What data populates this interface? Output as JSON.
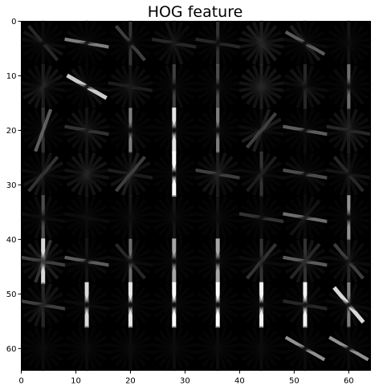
{
  "chart_data": {
    "type": "heatmap",
    "title": "HOG feature",
    "xlabel": "",
    "ylabel": "",
    "xlim": [
      0,
      64
    ],
    "ylim": [
      64,
      0
    ],
    "x_ticks": [
      0,
      10,
      20,
      30,
      40,
      50,
      60
    ],
    "y_ticks": [
      0,
      10,
      20,
      30,
      40,
      50,
      60
    ],
    "colormap": "gray",
    "grid": false,
    "image_size": [
      64,
      64
    ],
    "cell_size": 8,
    "cells_per_side": 8,
    "orientation_bins_deg": [
      0,
      20,
      40,
      60,
      80,
      100,
      120,
      140,
      160
    ],
    "cells": [
      [
        [
          0.1,
          0.05,
          0.25,
          0.15,
          0.1,
          0.05,
          0.05,
          0.05,
          0.05
        ],
        [
          0.05,
          0.05,
          0.05,
          0.1,
          0.55,
          0.05,
          0.05,
          0.05,
          0.05
        ],
        [
          0.3,
          0.05,
          0.35,
          0.05,
          0.05,
          0.05,
          0.05,
          0.05,
          0.05
        ],
        [
          0.1,
          0.15,
          0.05,
          0.1,
          0.25,
          0.05,
          0.05,
          0.1,
          0.1
        ],
        [
          0.3,
          0.05,
          0.05,
          0.05,
          0.25,
          0.05,
          0.05,
          0.05,
          0.05
        ],
        [
          0.2,
          0.15,
          0.2,
          0.15,
          0.15,
          0.15,
          0.1,
          0.15,
          0.15
        ],
        [
          0.05,
          0.1,
          0.2,
          0.45,
          0.1,
          0.05,
          0.05,
          0.05,
          0.05
        ],
        [
          0.15,
          0.05,
          0.05,
          0.05,
          0.05,
          0.05,
          0.05,
          0.05,
          0.05
        ]
      ],
      [
        [
          0.2,
          0.1,
          0.1,
          0.05,
          0.1,
          0.1,
          0.15,
          0.15,
          0.15
        ],
        [
          0.05,
          0.1,
          0.15,
          0.8,
          0.1,
          0.05,
          0.05,
          0.05,
          0.05
        ],
        [
          0.15,
          0.1,
          0.1,
          0.1,
          0.2,
          0.1,
          0.1,
          0.1,
          0.1
        ],
        [
          0.35,
          0.1,
          0.05,
          0.05,
          0.05,
          0.05,
          0.05,
          0.05,
          0.05
        ],
        [
          0.4,
          0.05,
          0.05,
          0.05,
          0.05,
          0.05,
          0.05,
          0.05,
          0.05
        ],
        [
          0.2,
          0.15,
          0.15,
          0.15,
          0.15,
          0.15,
          0.15,
          0.15,
          0.15
        ],
        [
          0.25,
          0.1,
          0.15,
          0.1,
          0.1,
          0.05,
          0.05,
          0.05,
          0.1
        ],
        [
          0.5,
          0.05,
          0.1,
          0.05,
          0.05,
          0.05,
          0.05,
          0.05,
          0.1
        ]
      ],
      [
        [
          0.3,
          0.05,
          0.05,
          0.05,
          0.05,
          0.05,
          0.05,
          0.1,
          0.45
        ],
        [
          0.15,
          0.1,
          0.15,
          0.1,
          0.3,
          0.1,
          0.1,
          0.1,
          0.1
        ],
        [
          0.55,
          0.1,
          0.1,
          0.05,
          0.05,
          0.05,
          0.05,
          0.05,
          0.05
        ],
        [
          0.9,
          0.05,
          0.05,
          0.05,
          0.05,
          0.05,
          0.05,
          0.05,
          0.05
        ],
        [
          0.55,
          0.05,
          0.05,
          0.05,
          0.05,
          0.05,
          0.05,
          0.05,
          0.05
        ],
        [
          0.1,
          0.05,
          0.05,
          0.05,
          0.1,
          0.1,
          0.2,
          0.35,
          0.2
        ],
        [
          0.1,
          0.05,
          0.05,
          0.05,
          0.45,
          0.05,
          0.05,
          0.05,
          0.05
        ],
        [
          0.2,
          0.15,
          0.15,
          0.1,
          0.25,
          0.1,
          0.1,
          0.1,
          0.15
        ]
      ],
      [
        [
          0.15,
          0.05,
          0.05,
          0.05,
          0.1,
          0.05,
          0.15,
          0.3,
          0.15
        ],
        [
          0.15,
          0.15,
          0.15,
          0.1,
          0.15,
          0.1,
          0.15,
          0.15,
          0.15
        ],
        [
          0.15,
          0.1,
          0.1,
          0.05,
          0.2,
          0.05,
          0.15,
          0.35,
          0.2
        ],
        [
          1.0,
          0.05,
          0.05,
          0.05,
          0.05,
          0.05,
          0.05,
          0.05,
          0.05
        ],
        [
          0.2,
          0.1,
          0.1,
          0.1,
          0.35,
          0.1,
          0.1,
          0.15,
          0.15
        ],
        [
          0.3,
          0.05,
          0.05,
          0.05,
          0.1,
          0.05,
          0.1,
          0.2,
          0.1
        ],
        [
          0.05,
          0.05,
          0.1,
          0.1,
          0.4,
          0.1,
          0.05,
          0.05,
          0.05
        ],
        [
          0.15,
          0.1,
          0.25,
          0.1,
          0.15,
          0.05,
          0.05,
          0.05,
          0.1
        ]
      ],
      [
        [
          0.4,
          0.1,
          0.05,
          0.05,
          0.1,
          0.05,
          0.05,
          0.05,
          0.1
        ],
        [
          0.1,
          0.05,
          0.05,
          0.05,
          0.1,
          0.05,
          0.05,
          0.05,
          0.05
        ],
        [
          0.15,
          0.05,
          0.05,
          0.05,
          0.05,
          0.05,
          0.05,
          0.05,
          0.05
        ],
        [
          0.15,
          0.05,
          0.05,
          0.05,
          0.05,
          0.05,
          0.05,
          0.05,
          0.05
        ],
        [
          0.15,
          0.05,
          0.05,
          0.05,
          0.05,
          0.05,
          0.05,
          0.05,
          0.05
        ],
        [
          0.1,
          0.05,
          0.05,
          0.05,
          0.3,
          0.05,
          0.05,
          0.05,
          0.05
        ],
        [
          0.1,
          0.05,
          0.05,
          0.05,
          0.5,
          0.05,
          0.05,
          0.15,
          0.1
        ],
        [
          0.6,
          0.05,
          0.05,
          0.05,
          0.05,
          0.05,
          0.05,
          0.05,
          0.05
        ]
      ],
      [
        [
          0.85,
          0.1,
          0.2,
          0.1,
          0.35,
          0.1,
          0.1,
          0.15,
          0.3
        ],
        [
          0.15,
          0.05,
          0.05,
          0.1,
          0.45,
          0.1,
          0.05,
          0.05,
          0.05
        ],
        [
          0.5,
          0.05,
          0.25,
          0.05,
          0.1,
          0.05,
          0.05,
          0.05,
          0.1
        ],
        [
          0.65,
          0.05,
          0.05,
          0.05,
          0.05,
          0.05,
          0.05,
          0.05,
          0.05
        ],
        [
          0.65,
          0.05,
          0.05,
          0.05,
          0.05,
          0.05,
          0.05,
          0.05,
          0.05
        ],
        [
          0.3,
          0.05,
          0.05,
          0.05,
          0.1,
          0.05,
          0.1,
          0.3,
          0.1
        ],
        [
          0.3,
          0.1,
          0.1,
          0.1,
          0.45,
          0.1,
          0.1,
          0.25,
          0.15
        ],
        [
          0.25,
          0.1,
          0.35,
          0.1,
          0.1,
          0.05,
          0.05,
          0.1,
          0.1
        ]
      ],
      [
        [
          0.25,
          0.05,
          0.1,
          0.05,
          0.35,
          0.05,
          0.1,
          0.15,
          0.15
        ],
        [
          0.85,
          0.05,
          0.05,
          0.05,
          0.1,
          0.05,
          0.05,
          0.05,
          0.05
        ],
        [
          0.9,
          0.05,
          0.05,
          0.05,
          0.05,
          0.05,
          0.05,
          0.05,
          0.05
        ],
        [
          1.0,
          0.05,
          0.05,
          0.05,
          0.05,
          0.05,
          0.05,
          0.05,
          0.05
        ],
        [
          1.0,
          0.05,
          0.05,
          0.05,
          0.05,
          0.05,
          0.05,
          0.05,
          0.05
        ],
        [
          0.95,
          0.05,
          0.05,
          0.05,
          0.05,
          0.05,
          0.05,
          0.05,
          0.05
        ],
        [
          0.95,
          0.05,
          0.05,
          0.05,
          0.25,
          0.05,
          0.05,
          0.1,
          0.05
        ],
        [
          0.55,
          0.1,
          0.85,
          0.1,
          0.1,
          0.05,
          0.05,
          0.05,
          0.1
        ]
      ],
      [
        [
          0.1,
          0.05,
          0.05,
          0.05,
          0.05,
          0.05,
          0.05,
          0.05,
          0.05
        ],
        [
          0.1,
          0.05,
          0.05,
          0.05,
          0.05,
          0.05,
          0.05,
          0.05,
          0.05
        ],
        [
          0.1,
          0.05,
          0.05,
          0.05,
          0.05,
          0.05,
          0.05,
          0.05,
          0.05
        ],
        [
          0.1,
          0.05,
          0.05,
          0.05,
          0.05,
          0.05,
          0.05,
          0.05,
          0.05
        ],
        [
          0.1,
          0.05,
          0.05,
          0.05,
          0.05,
          0.05,
          0.05,
          0.05,
          0.05
        ],
        [
          0.1,
          0.05,
          0.05,
          0.05,
          0.05,
          0.05,
          0.05,
          0.05,
          0.05
        ],
        [
          0.1,
          0.05,
          0.05,
          0.6,
          0.05,
          0.05,
          0.05,
          0.05,
          0.05
        ],
        [
          0.1,
          0.05,
          0.05,
          0.6,
          0.05,
          0.05,
          0.05,
          0.05,
          0.05
        ]
      ]
    ]
  }
}
